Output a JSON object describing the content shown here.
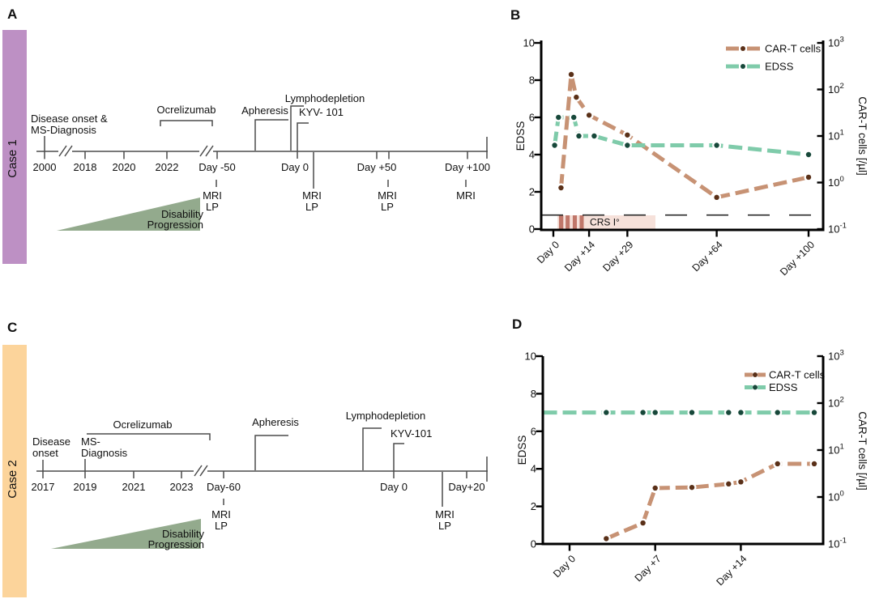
{
  "panels": {
    "a": "A",
    "b": "B",
    "c": "C",
    "d": "D"
  },
  "case1": {
    "label": "Case 1",
    "color": "#bd90c4",
    "timeline": {
      "onset_line1": "Disease onset &",
      "onset_line2": "MS-Diagnosis",
      "ocrelizumab": "Ocrelizumab",
      "apheresis": "Apheresis",
      "lymphodepletion": "Lymphodepletion",
      "kyv": "KYV- 101",
      "ticks": [
        "2000",
        "2018",
        "2020",
        "2022",
        "Day -50",
        "Day 0",
        "Day +50",
        "Day +100"
      ],
      "mri": "MRI",
      "lp": "LP",
      "disability_line1": "Disability",
      "disability_line2": "Progression",
      "triangle_color": "#93aa8d"
    }
  },
  "case2": {
    "label": "Case 2",
    "color": "#fcd49b",
    "timeline": {
      "onset_line1": "Disease",
      "onset_line2": "onset",
      "diagnosis_line1": "MS-",
      "diagnosis_line2": "Diagnosis",
      "ocrelizumab": "Ocrelizumab",
      "apheresis": "Apheresis",
      "lymphodepletion": "Lymphodepletion",
      "kyv": "KYV-101",
      "ticks": [
        "2017",
        "2019",
        "2021",
        "2023",
        "Day-60",
        "Day 0",
        "Day+20"
      ],
      "mri": "MRI",
      "lp": "LP",
      "disability_line1": "Disability",
      "disability_line2": "Progression",
      "triangle_color": "#93aa8d"
    }
  },
  "chart_data": [
    {
      "panel": "B",
      "type": "line",
      "title": "",
      "y_left": {
        "label": "EDSS",
        "min": 0,
        "max": 10,
        "ticks": [
          0,
          2,
          4,
          6,
          8,
          10
        ]
      },
      "y_right": {
        "label": "CAR-T cells [/µl]",
        "scale": "log",
        "min": 0.1,
        "max": 1000,
        "tick_exponents": [
          -1,
          0,
          1,
          2,
          3
        ]
      },
      "x_ticks": [
        {
          "day": 0,
          "label": "Day 0"
        },
        {
          "day": 14,
          "label": "Day +14"
        },
        {
          "day": 29,
          "label": "Day +29"
        },
        {
          "day": 64,
          "label": "Day +64"
        },
        {
          "day": 100,
          "label": "Day +100"
        }
      ],
      "series": [
        {
          "name": "CAR-T cells",
          "axis": "right",
          "color": "#c79274",
          "dot_color": "#5a3018",
          "points": [
            [
              3,
              0.77
            ],
            [
              7,
              210
            ],
            [
              9,
              68
            ],
            [
              14,
              28
            ],
            [
              29,
              10.5
            ],
            [
              64,
              0.48
            ],
            [
              100,
              1.3
            ]
          ]
        },
        {
          "name": "EDSS",
          "axis": "left",
          "color": "#7fcbaa",
          "dot_color": "#17483a",
          "points": [
            [
              0.5,
              4.5
            ],
            [
              2,
              6
            ],
            [
              8,
              6
            ],
            [
              10,
              5
            ],
            [
              16,
              5
            ],
            [
              29,
              4.5
            ],
            [
              64,
              4.5
            ],
            [
              100,
              4
            ]
          ]
        }
      ],
      "detection_limit": 0.2,
      "crs_band": {
        "label": "CRS I°",
        "day_start": 1.6,
        "day_end": 40,
        "band_color": "#f6e1da",
        "bar_color": "#c0776a",
        "bars": [
          [
            2.2,
            3.9
          ],
          [
            4.8,
            6.4
          ],
          [
            7.6,
            9.2
          ],
          [
            10.3,
            11.9
          ]
        ]
      },
      "legend": [
        "CAR-T cells",
        "EDSS"
      ]
    },
    {
      "panel": "D",
      "type": "line",
      "title": "",
      "y_left": {
        "label": "EDSS",
        "min": 0,
        "max": 10,
        "ticks": [
          0,
          2,
          4,
          6,
          8,
          10
        ]
      },
      "y_right": {
        "label": "CAR-T cells [/µl]",
        "scale": "log",
        "min": 0.1,
        "max": 1000,
        "tick_exponents": [
          -1,
          0,
          1,
          2,
          3
        ]
      },
      "x_ticks": [
        {
          "day": 0,
          "label": "Day 0"
        },
        {
          "day": 7,
          "label": "Day +7"
        },
        {
          "day": 14,
          "label": "Day +14"
        }
      ],
      "series": [
        {
          "name": "CAR-T cells",
          "axis": "right",
          "color": "#c79274",
          "dot_color": "#5a3018",
          "points": [
            [
              3,
              0.13
            ],
            [
              6,
              0.28
            ],
            [
              7,
              1.55
            ],
            [
              10,
              1.6
            ],
            [
              13,
              1.9
            ],
            [
              14,
              2.1
            ],
            [
              17,
              5.1
            ],
            [
              20,
              5.1
            ]
          ]
        },
        {
          "name": "EDSS",
          "axis": "left",
          "color": "#7fcbaa",
          "dot_color": "#17483a",
          "points": [
            [
              -2.15,
              7
            ],
            [
              20,
              7
            ]
          ],
          "dot_days": [
            3,
            6,
            7,
            10,
            13,
            14,
            17,
            20
          ]
        }
      ],
      "legend": [
        "CAR-T cells",
        "EDSS"
      ]
    }
  ]
}
